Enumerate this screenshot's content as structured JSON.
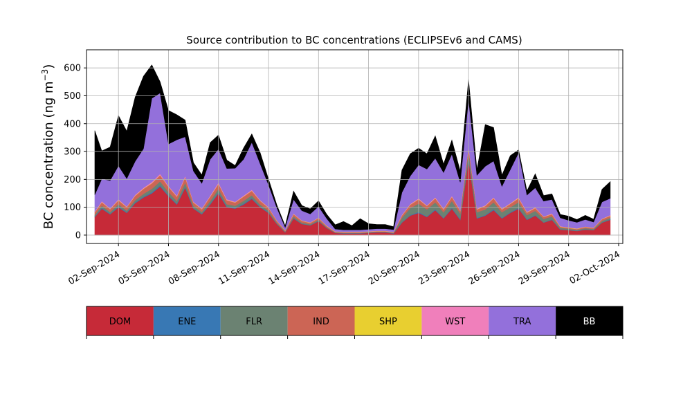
{
  "chart_data": {
    "type": "area",
    "title": "Source contribution to BC concentrations (ECLIPSEv6 and CAMS)",
    "ylabel_main": "BC concentration (ng m",
    "ylabel_sup": "−3",
    "ylabel_close": ")",
    "xlim": [
      "2024-08-31T02:00",
      "2024-10-02T06:00"
    ],
    "ylim": [
      -30,
      665
    ],
    "x_ticks": [
      "2024-09-02",
      "2024-09-05",
      "2024-09-08",
      "2024-09-11",
      "2024-09-14",
      "2024-09-17",
      "2024-09-20",
      "2024-09-23",
      "2024-09-26",
      "2024-09-29",
      "2024-10-02"
    ],
    "x_tick_labels": [
      "02-Sep-2024",
      "05-Sep-2024",
      "08-Sep-2024",
      "11-Sep-2024",
      "14-Sep-2024",
      "17-Sep-2024",
      "20-Sep-2024",
      "23-Sep-2024",
      "26-Sep-2024",
      "29-Sep-2024",
      "02-Oct-2024"
    ],
    "y_ticks": [
      0,
      100,
      200,
      300,
      400,
      500,
      600
    ],
    "grid": true,
    "legend_placement": "below",
    "x": [
      "2024-08-31T14:00",
      "2024-09-01T00:00",
      "2024-09-01T12:00",
      "2024-09-02T00:00",
      "2024-09-02T12:00",
      "2024-09-03T00:00",
      "2024-09-03T12:00",
      "2024-09-04T00:00",
      "2024-09-04T12:00",
      "2024-09-05T00:00",
      "2024-09-05T12:00",
      "2024-09-06T00:00",
      "2024-09-06T12:00",
      "2024-09-07T00:00",
      "2024-09-07T12:00",
      "2024-09-08T00:00",
      "2024-09-08T12:00",
      "2024-09-09T00:00",
      "2024-09-09T12:00",
      "2024-09-10T00:00",
      "2024-09-10T12:00",
      "2024-09-11T00:00",
      "2024-09-11T12:00",
      "2024-09-12T00:00",
      "2024-09-12T12:00",
      "2024-09-13T00:00",
      "2024-09-13T12:00",
      "2024-09-14T00:00",
      "2024-09-14T12:00",
      "2024-09-15T00:00",
      "2024-09-15T12:00",
      "2024-09-16T00:00",
      "2024-09-16T12:00",
      "2024-09-17T00:00",
      "2024-09-17T12:00",
      "2024-09-18T00:00",
      "2024-09-18T12:00",
      "2024-09-19T00:00",
      "2024-09-19T12:00",
      "2024-09-20T00:00",
      "2024-09-20T12:00",
      "2024-09-21T00:00",
      "2024-09-21T12:00",
      "2024-09-22T00:00",
      "2024-09-22T12:00",
      "2024-09-23T00:00",
      "2024-09-23T12:00",
      "2024-09-24T00:00",
      "2024-09-24T12:00",
      "2024-09-25T00:00",
      "2024-09-25T12:00",
      "2024-09-26T00:00",
      "2024-09-26T12:00",
      "2024-09-27T00:00",
      "2024-09-27T12:00",
      "2024-09-28T00:00",
      "2024-09-28T12:00",
      "2024-09-29T00:00",
      "2024-09-29T12:00",
      "2024-09-30T00:00",
      "2024-09-30T12:00",
      "2024-10-01T00:00",
      "2024-10-01T12:00"
    ],
    "series": [
      {
        "name": "DOM",
        "color": "#c62a38",
        "values": [
          65,
          95,
          75,
          100,
          80,
          115,
          135,
          150,
          175,
          140,
          110,
          170,
          95,
          75,
          110,
          150,
          100,
          95,
          110,
          130,
          100,
          80,
          40,
          10,
          60,
          40,
          35,
          50,
          25,
          8,
          6,
          6,
          6,
          8,
          10,
          10,
          6,
          45,
          70,
          80,
          65,
          90,
          60,
          95,
          55,
          270,
          60,
          70,
          90,
          60,
          80,
          95,
          55,
          70,
          45,
          55,
          20,
          18,
          15,
          20,
          18,
          45,
          55
        ]
      },
      {
        "name": "ENE",
        "color": "#3878b4",
        "values": [
          2,
          3,
          2,
          3,
          2,
          3,
          3,
          4,
          4,
          3,
          3,
          4,
          2,
          2,
          3,
          4,
          3,
          2,
          3,
          3,
          2,
          2,
          1,
          1,
          2,
          1,
          1,
          1,
          1,
          1,
          1,
          1,
          1,
          1,
          1,
          1,
          1,
          2,
          2,
          3,
          2,
          3,
          2,
          3,
          2,
          4,
          2,
          2,
          3,
          2,
          2,
          3,
          2,
          2,
          1,
          2,
          1,
          1,
          1,
          1,
          1,
          1,
          2
        ]
      },
      {
        "name": "FLR",
        "color": "#6b8272",
        "values": [
          5,
          8,
          6,
          8,
          6,
          8,
          10,
          12,
          14,
          12,
          10,
          14,
          8,
          6,
          10,
          12,
          8,
          8,
          10,
          10,
          8,
          6,
          4,
          2,
          5,
          4,
          3,
          4,
          2,
          1,
          1,
          1,
          1,
          1,
          1,
          1,
          1,
          15,
          25,
          30,
          25,
          25,
          20,
          25,
          20,
          25,
          20,
          20,
          25,
          20,
          18,
          20,
          15,
          15,
          12,
          10,
          5,
          4,
          3,
          4,
          3,
          5,
          5
        ]
      },
      {
        "name": "IND",
        "color": "#cc6555",
        "values": [
          10,
          12,
          10,
          14,
          12,
          15,
          18,
          20,
          22,
          18,
          15,
          20,
          12,
          10,
          15,
          18,
          14,
          12,
          15,
          16,
          13,
          10,
          6,
          3,
          8,
          6,
          5,
          6,
          4,
          2,
          2,
          2,
          2,
          2,
          2,
          2,
          2,
          8,
          12,
          15,
          12,
          14,
          10,
          14,
          10,
          15,
          10,
          12,
          14,
          10,
          12,
          14,
          9,
          10,
          7,
          8,
          4,
          3,
          3,
          4,
          3,
          6,
          7
        ]
      },
      {
        "name": "SHP",
        "color": "#e8cf30",
        "values": [
          1,
          1,
          1,
          1,
          1,
          1,
          1,
          1,
          1,
          1,
          1,
          1,
          1,
          1,
          1,
          1,
          1,
          1,
          1,
          1,
          1,
          1,
          1,
          1,
          1,
          1,
          1,
          1,
          1,
          1,
          1,
          1,
          1,
          1,
          1,
          1,
          1,
          1,
          1,
          1,
          1,
          1,
          1,
          1,
          1,
          1,
          1,
          1,
          1,
          1,
          1,
          1,
          1,
          1,
          1,
          1,
          1,
          1,
          1,
          1,
          1,
          1,
          1
        ]
      },
      {
        "name": "WST",
        "color": "#f07fbb",
        "values": [
          2,
          3,
          2,
          3,
          2,
          3,
          3,
          4,
          4,
          3,
          3,
          4,
          2,
          2,
          3,
          4,
          3,
          2,
          3,
          3,
          2,
          2,
          1,
          1,
          2,
          1,
          1,
          1,
          1,
          1,
          1,
          1,
          1,
          1,
          1,
          1,
          1,
          2,
          2,
          3,
          2,
          3,
          2,
          3,
          2,
          4,
          2,
          2,
          3,
          2,
          2,
          3,
          2,
          2,
          1,
          2,
          1,
          1,
          1,
          1,
          1,
          1,
          2
        ]
      },
      {
        "name": "TRA",
        "color": "#9370db",
        "values": [
          60,
          80,
          100,
          120,
          100,
          120,
          140,
          300,
          290,
          150,
          200,
          140,
          110,
          90,
          130,
          120,
          110,
          120,
          130,
          170,
          130,
          80,
          45,
          10,
          50,
          35,
          30,
          40,
          25,
          8,
          7,
          7,
          7,
          7,
          7,
          7,
          8,
          80,
          100,
          120,
          130,
          140,
          130,
          150,
          100,
          170,
          120,
          140,
          130,
          80,
          120,
          160,
          60,
          70,
          55,
          50,
          30,
          25,
          22,
          25,
          20,
          60,
          60
        ]
      },
      {
        "name": "BB",
        "color": "#000000",
        "values": [
          230,
          100,
          120,
          180,
          170,
          230,
          260,
          120,
          40,
          120,
          90,
          60,
          30,
          30,
          60,
          50,
          30,
          10,
          40,
          30,
          40,
          20,
          10,
          5,
          30,
          18,
          18,
          20,
          15,
          15,
          30,
          15,
          40,
          20,
          15,
          15,
          10,
          80,
          80,
          60,
          55,
          80,
          30,
          50,
          40,
          70,
          20,
          150,
          120,
          40,
          50,
          10,
          15,
          50,
          20,
          20,
          12,
          15,
          10,
          15,
          10,
          45,
          60
        ]
      }
    ],
    "legend": [
      "DOM",
      "ENE",
      "FLR",
      "IND",
      "SHP",
      "WST",
      "TRA",
      "BB"
    ]
  }
}
